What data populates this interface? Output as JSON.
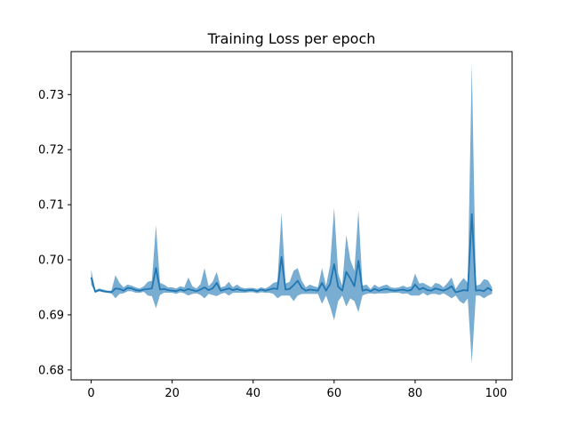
{
  "chart_data": {
    "type": "line",
    "title": "Training Loss per epoch",
    "xlabel": "",
    "ylabel": "",
    "xlim": [
      -4.95,
      103.95
    ],
    "ylim": [
      0.6782,
      0.7378
    ],
    "x_ticks": [
      0,
      20,
      40,
      60,
      80,
      100
    ],
    "y_ticks": [
      0.68,
      0.69,
      0.7,
      0.71,
      0.72,
      0.73
    ],
    "x_tick_labels": [
      "0",
      "20",
      "40",
      "60",
      "80",
      "100"
    ],
    "y_tick_labels": [
      "0.68",
      "0.69",
      "0.70",
      "0.71",
      "0.72",
      "0.73"
    ],
    "grid": false,
    "legend": "none",
    "colors": {
      "line": "#1f77b4",
      "band": "#1f77b4",
      "band_opacity": 0.6
    },
    "series": [
      {
        "x": [
          0,
          1,
          2,
          3,
          4,
          5,
          6,
          7,
          8,
          9,
          10,
          11,
          12,
          13,
          14,
          15,
          16,
          17,
          18,
          19,
          20,
          21,
          22,
          23,
          24,
          25,
          26,
          27,
          28,
          29,
          30,
          31,
          32,
          33,
          34,
          35,
          36,
          37,
          38,
          39,
          40,
          41,
          42,
          43,
          44,
          45,
          46,
          47,
          48,
          49,
          50,
          51,
          52,
          53,
          54,
          55,
          56,
          57,
          58,
          59,
          60,
          61,
          62,
          63,
          64,
          65,
          66,
          67,
          68,
          69,
          70,
          71,
          72,
          73,
          74,
          75,
          76,
          77,
          78,
          79,
          80,
          81,
          82,
          83,
          84,
          85,
          86,
          87,
          88,
          89,
          90,
          91,
          92,
          93,
          94,
          95,
          96,
          97,
          98,
          99
        ],
        "values": [
          0.6968,
          0.6942,
          0.6945,
          0.6943,
          0.6942,
          0.6941,
          0.6948,
          0.6947,
          0.6944,
          0.6949,
          0.6948,
          0.6945,
          0.6944,
          0.6946,
          0.6947,
          0.6948,
          0.6985,
          0.6946,
          0.6947,
          0.6945,
          0.6944,
          0.6943,
          0.6946,
          0.6944,
          0.6947,
          0.6945,
          0.6943,
          0.6946,
          0.695,
          0.6945,
          0.6948,
          0.6958,
          0.6944,
          0.6946,
          0.6948,
          0.6945,
          0.6947,
          0.6945,
          0.6944,
          0.6945,
          0.6945,
          0.6943,
          0.6946,
          0.6944,
          0.6946,
          0.6948,
          0.6947,
          0.7005,
          0.6946,
          0.6947,
          0.6954,
          0.6962,
          0.6949,
          0.6944,
          0.6946,
          0.6945,
          0.6944,
          0.6958,
          0.6944,
          0.6956,
          0.6992,
          0.6951,
          0.6944,
          0.6978,
          0.6966,
          0.6952,
          0.6998,
          0.6944,
          0.6946,
          0.6943,
          0.6947,
          0.6944,
          0.6946,
          0.6947,
          0.6945,
          0.6944,
          0.6945,
          0.6946,
          0.6944,
          0.6945,
          0.6955,
          0.6946,
          0.6949,
          0.6945,
          0.6944,
          0.6948,
          0.6946,
          0.6944,
          0.6947,
          0.6952,
          0.6941,
          0.6943,
          0.6945,
          0.6944,
          0.7083,
          0.6944,
          0.6945,
          0.6943,
          0.6949,
          0.6944
        ],
        "band_lower": [
          0.6955,
          0.694,
          0.6943,
          0.6941,
          0.694,
          0.6939,
          0.693,
          0.6938,
          0.6939,
          0.6943,
          0.6943,
          0.694,
          0.694,
          0.6942,
          0.6935,
          0.6934,
          0.6912,
          0.6936,
          0.694,
          0.694,
          0.694,
          0.6938,
          0.6941,
          0.6939,
          0.6935,
          0.6938,
          0.6939,
          0.6936,
          0.693,
          0.6938,
          0.6936,
          0.6934,
          0.6938,
          0.694,
          0.6935,
          0.694,
          0.694,
          0.694,
          0.694,
          0.6941,
          0.6941,
          0.6939,
          0.6941,
          0.694,
          0.694,
          0.6938,
          0.693,
          0.6935,
          0.6935,
          0.6935,
          0.6925,
          0.6935,
          0.6938,
          0.6938,
          0.6938,
          0.6938,
          0.6938,
          0.692,
          0.6935,
          0.6915,
          0.689,
          0.6925,
          0.6935,
          0.6915,
          0.693,
          0.6925,
          0.6905,
          0.6935,
          0.6938,
          0.6939,
          0.6938,
          0.6939,
          0.6939,
          0.6939,
          0.694,
          0.694,
          0.694,
          0.6938,
          0.6939,
          0.6935,
          0.6935,
          0.6935,
          0.694,
          0.6935,
          0.6938,
          0.6938,
          0.6936,
          0.6939,
          0.6935,
          0.693,
          0.6935,
          0.6925,
          0.692,
          0.693,
          0.6812,
          0.6935,
          0.6935,
          0.693,
          0.6935,
          0.6938
        ],
        "band_upper": [
          0.6982,
          0.6945,
          0.6948,
          0.6946,
          0.6944,
          0.6944,
          0.6972,
          0.6958,
          0.695,
          0.6955,
          0.6953,
          0.695,
          0.6948,
          0.6952,
          0.696,
          0.6962,
          0.7063,
          0.6958,
          0.6955,
          0.695,
          0.695,
          0.6948,
          0.6952,
          0.695,
          0.6968,
          0.6952,
          0.6948,
          0.6956,
          0.6985,
          0.6952,
          0.696,
          0.6978,
          0.695,
          0.6952,
          0.696,
          0.695,
          0.6955,
          0.695,
          0.6948,
          0.6949,
          0.6949,
          0.6947,
          0.695,
          0.6948,
          0.6952,
          0.6958,
          0.696,
          0.7085,
          0.6957,
          0.696,
          0.698,
          0.6985,
          0.6962,
          0.695,
          0.6955,
          0.6952,
          0.695,
          0.6985,
          0.6953,
          0.699,
          0.7095,
          0.6975,
          0.6953,
          0.7045,
          0.7,
          0.698,
          0.709,
          0.6953,
          0.6955,
          0.6947,
          0.6955,
          0.695,
          0.6953,
          0.6955,
          0.695,
          0.6949,
          0.695,
          0.6953,
          0.695,
          0.6952,
          0.6975,
          0.6957,
          0.6958,
          0.6954,
          0.695,
          0.6958,
          0.6956,
          0.695,
          0.6958,
          0.6968,
          0.6947,
          0.6958,
          0.6967,
          0.6958,
          0.7355,
          0.6953,
          0.6955,
          0.6965,
          0.6963,
          0.695
        ]
      }
    ]
  }
}
